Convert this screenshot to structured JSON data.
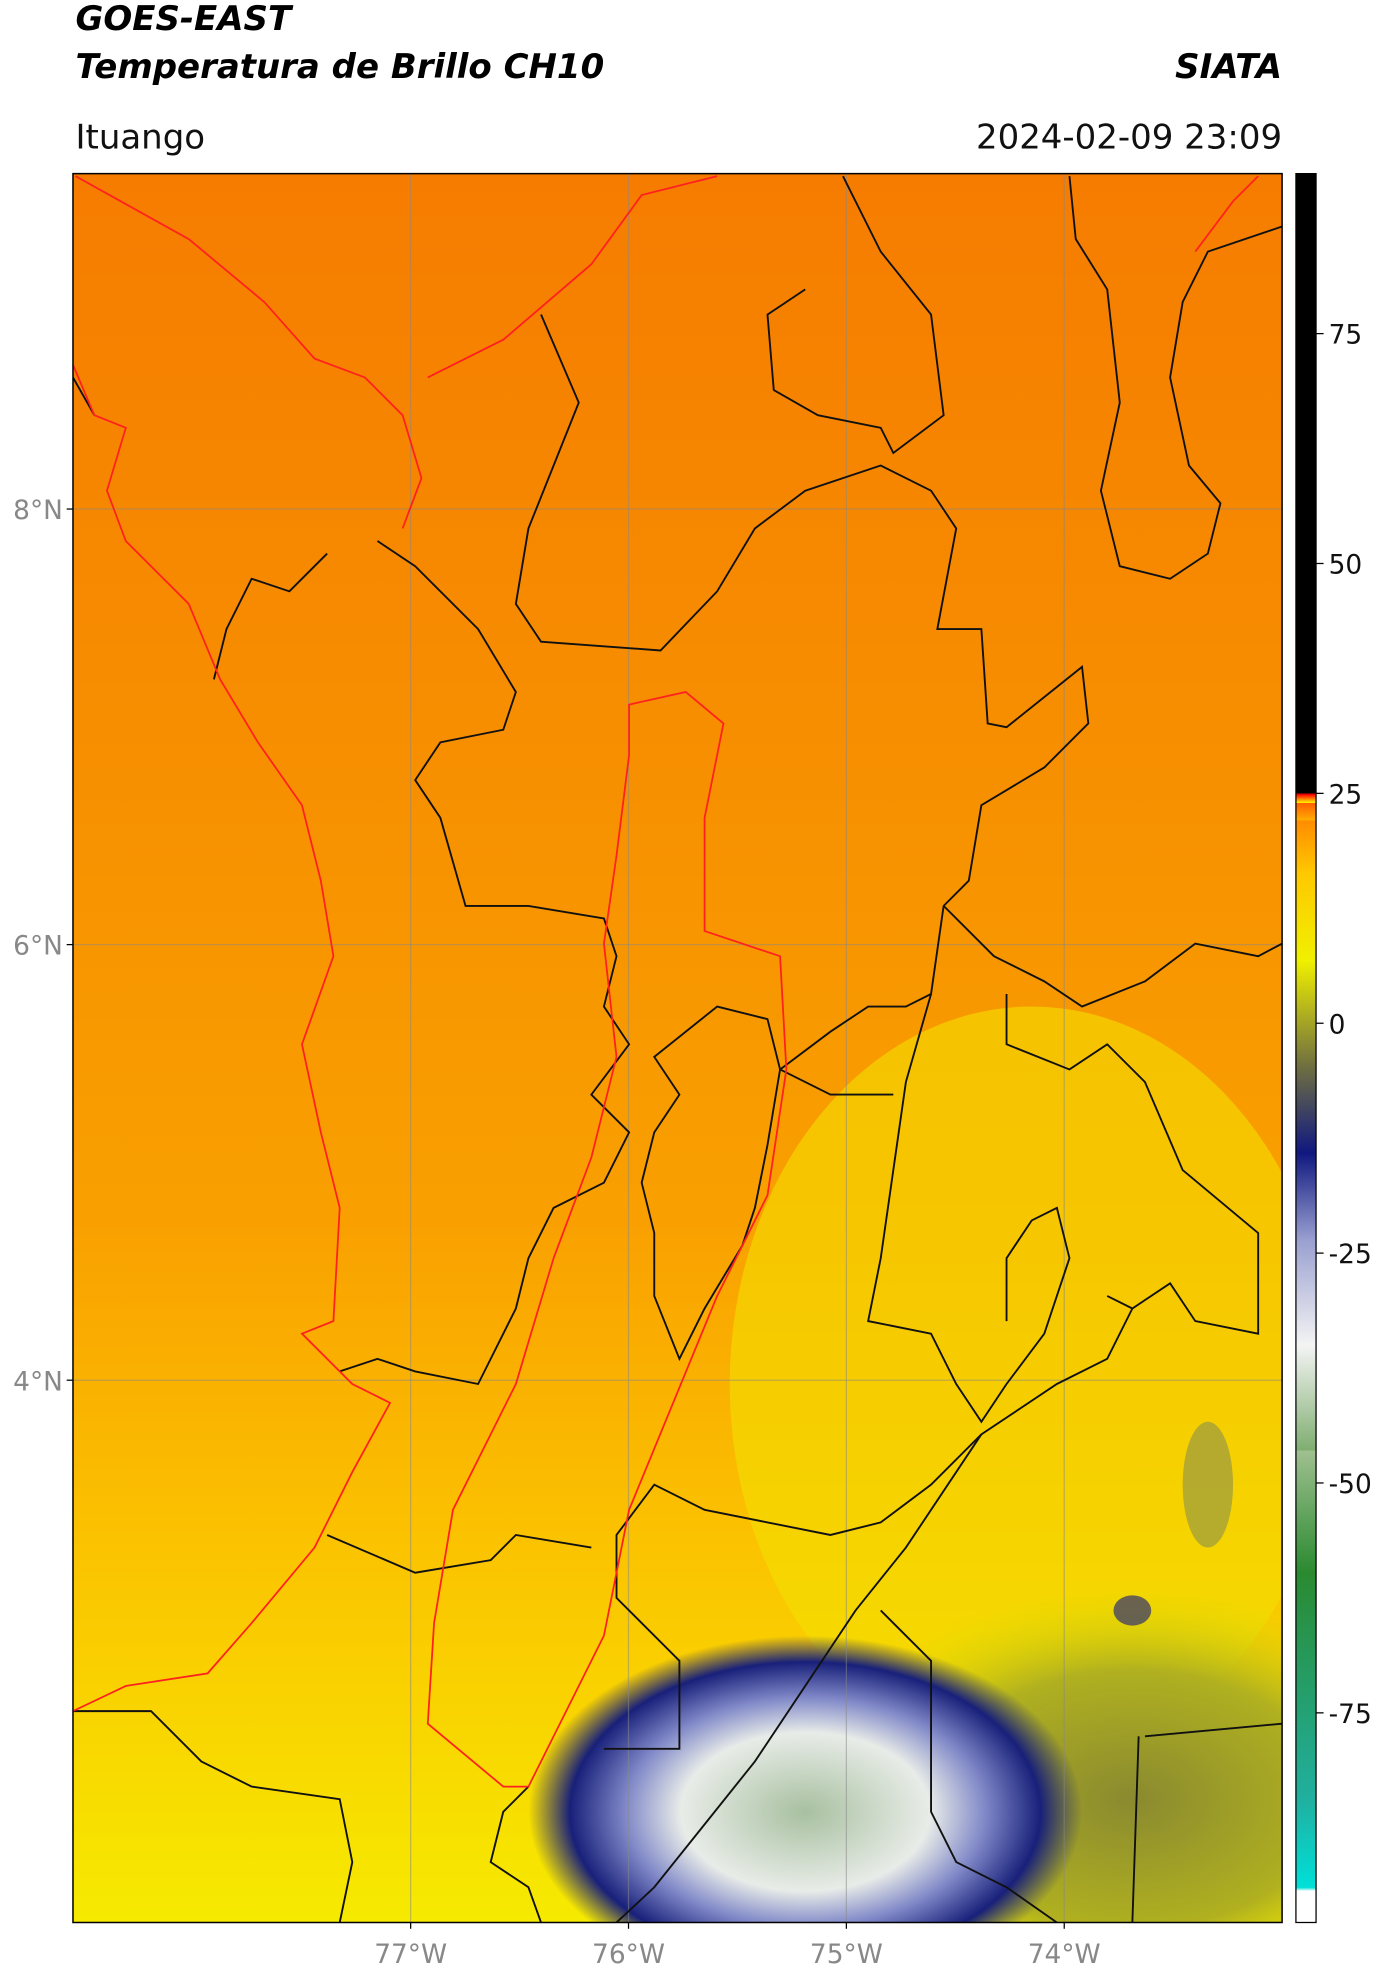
{
  "header": {
    "title": "GOES-EAST",
    "subtitle": "Temperatura de Brillo CH10",
    "source": "SIATA",
    "region": "Ituango",
    "datetime": "2024-02-09 23:09"
  },
  "map": {
    "latlim": [
      1.51,
      9.54
    ],
    "lonlim": [
      -78.55,
      -73.0
    ],
    "grid": true,
    "lat_ticks": [
      {
        "value": 8,
        "label": "8°N"
      },
      {
        "value": 6,
        "label": "6°N"
      },
      {
        "value": 4,
        "label": "4°N"
      }
    ],
    "lon_ticks": [
      {
        "value": -77,
        "label": "77°W"
      },
      {
        "value": -76,
        "label": "76°W"
      },
      {
        "value": -75,
        "label": "75°W"
      },
      {
        "value": -74,
        "label": "74°W"
      }
    ]
  },
  "colorbar": {
    "lim": [
      -97.8,
      92.4
    ],
    "ticks": [
      -75,
      -50,
      -25,
      0,
      25,
      50,
      75
    ]
  }
}
